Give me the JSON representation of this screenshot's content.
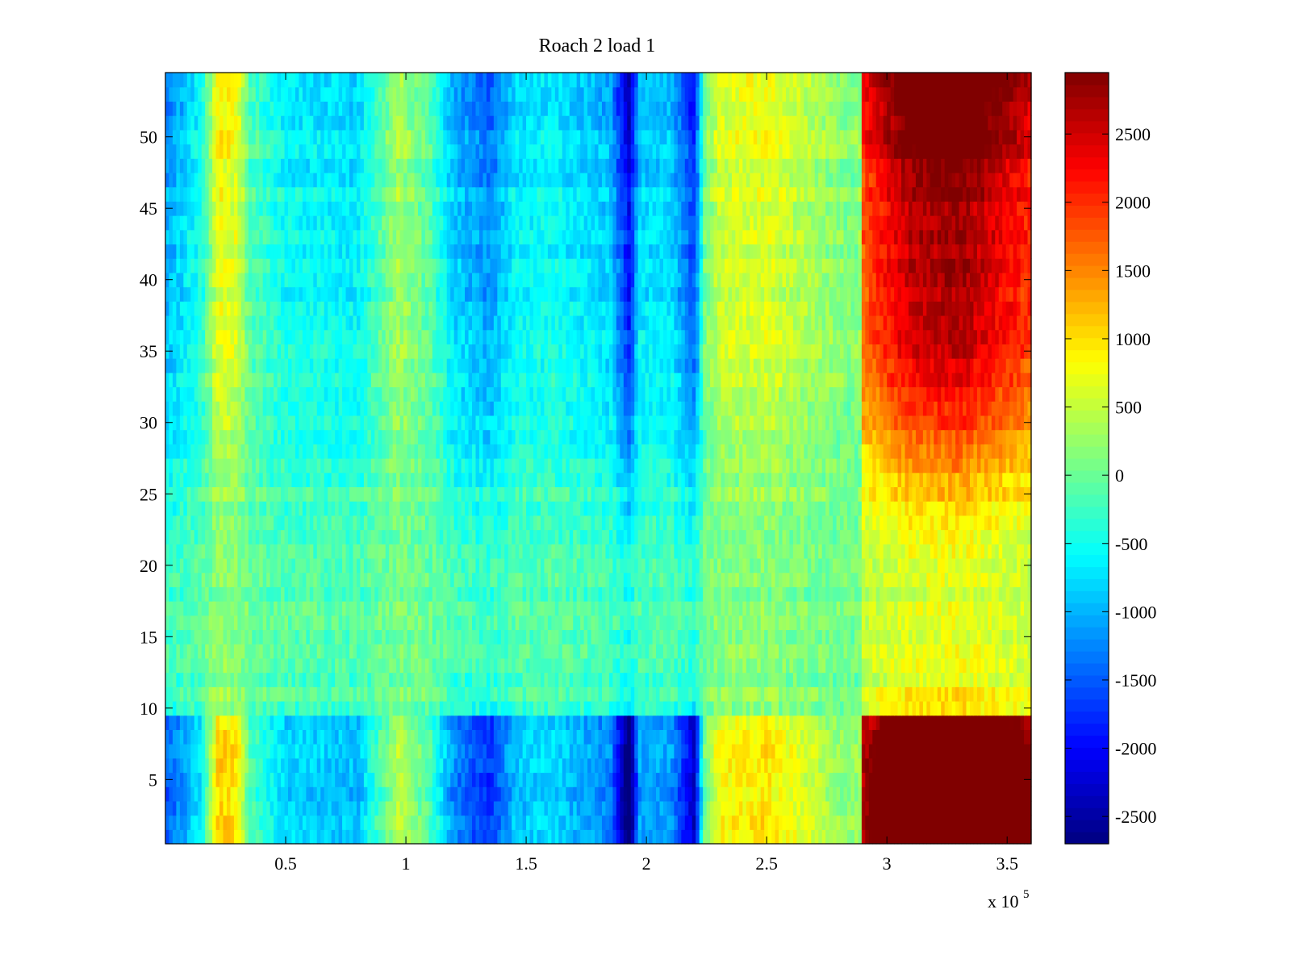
{
  "chart_data": {
    "type": "heatmap",
    "title": "Roach 2 load 1",
    "xlabel": "",
    "ylabel": "",
    "x_multiplier_label": "x 10",
    "x_multiplier_exponent": "5",
    "xlim": [
      0,
      3.6
    ],
    "ylim": [
      0.5,
      54.5
    ],
    "x_ticks": [
      0.5,
      1,
      1.5,
      2,
      2.5,
      3,
      3.5
    ],
    "x_tick_labels": [
      "0.5",
      "1",
      "1.5",
      "2",
      "2.5",
      "3",
      "3.5"
    ],
    "y_ticks": [
      5,
      10,
      15,
      20,
      25,
      30,
      35,
      40,
      45,
      50
    ],
    "y_tick_labels": [
      "5",
      "10",
      "15",
      "20",
      "25",
      "30",
      "35",
      "40",
      "45",
      "50"
    ],
    "colorbar": {
      "colormap": "jet",
      "clim": [
        -2700,
        2950
      ],
      "ticks": [
        -2500,
        -2000,
        -1500,
        -1000,
        -500,
        0,
        500,
        1000,
        1500,
        2000,
        2500
      ],
      "tick_labels": [
        "-2500",
        "-2000",
        "-1500",
        "-1000",
        "-500",
        "0",
        "500",
        "1000",
        "1500",
        "2000",
        "2500"
      ]
    },
    "rows": 54,
    "column_profile": {
      "x": [
        0,
        0.15,
        0.22,
        0.3,
        0.35,
        0.5,
        0.8,
        0.97,
        1.1,
        1.2,
        1.35,
        1.45,
        1.6,
        1.85,
        1.93,
        1.97,
        2.1,
        2.2,
        2.24,
        2.3,
        2.5,
        2.7,
        2.85,
        2.89,
        2.9,
        3.1,
        3.3,
        3.45,
        3.6
      ],
      "value": [
        -1000,
        -400,
        700,
        600,
        -100,
        -500,
        -600,
        300,
        -100,
        -800,
        -1100,
        -600,
        -500,
        -800,
        -1900,
        -700,
        -700,
        -1500,
        0,
        500,
        600,
        300,
        100,
        200,
        1700,
        2500,
        2700,
        2300,
        1900
      ]
    },
    "row_modulation": {
      "y": [
        1,
        5,
        9,
        10,
        12,
        15,
        20,
        25,
        30,
        35,
        40,
        45,
        50,
        54
      ],
      "value": [
        1.6,
        1.6,
        1.5,
        0.4,
        0.3,
        0.25,
        0.25,
        0.45,
        0.75,
        0.95,
        1.05,
        1.05,
        1.25,
        1.35
      ]
    },
    "grid": false,
    "legend": "none"
  }
}
